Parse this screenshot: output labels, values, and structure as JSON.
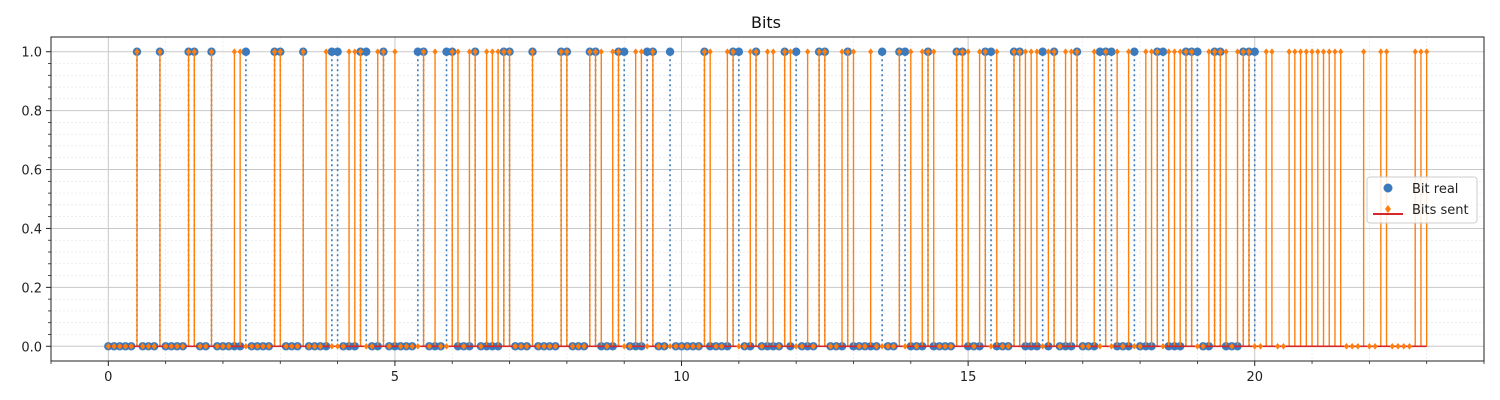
{
  "chart_data": {
    "type": "stem",
    "title": "Bits",
    "xlabel": "",
    "ylabel": "",
    "xlim": [
      -1.0,
      24.0
    ],
    "ylim": [
      -0.05,
      1.05
    ],
    "x_ticks": [
      0,
      5,
      10,
      15,
      20
    ],
    "x_tick_labels": [
      "0",
      "5",
      "10",
      "15",
      "20"
    ],
    "y_ticks": [
      0.0,
      0.2,
      0.4,
      0.6,
      0.8,
      1.0
    ],
    "y_tick_labels": [
      "0.0",
      "0.2",
      "0.4",
      "0.6",
      "0.8",
      "1.0"
    ],
    "grid": "major and minor",
    "legend_position": "right",
    "series": [
      {
        "name": "Bit real",
        "color": "#3a7abd",
        "marker": "circle",
        "line_style": "dotted",
        "step": 0.1,
        "x_start": 0.0,
        "ones_x": [
          0.5,
          0.9,
          1.4,
          1.5,
          1.8,
          2.4,
          2.9,
          3.0,
          3.4,
          3.9,
          4.0,
          4.4,
          4.5,
          4.8,
          5.4,
          5.5,
          5.9,
          6.0,
          6.4,
          6.9,
          7.0,
          7.4,
          7.9,
          8.0,
          8.4,
          8.5,
          8.9,
          9.0,
          9.4,
          9.5,
          9.8,
          10.4,
          10.9,
          11.0,
          11.3,
          11.8,
          12.0,
          12.4,
          12.5,
          12.9,
          13.5,
          13.8,
          13.9,
          14.3,
          14.8,
          14.9,
          15.3,
          15.4,
          15.8,
          15.9,
          16.3,
          16.5,
          16.9,
          17.3,
          17.4,
          17.5,
          17.9,
          18.3,
          18.4,
          18.8,
          18.9,
          19.0,
          19.3,
          19.4,
          19.8,
          19.9,
          20.0
        ],
        "zero_x_range": [
          0.0,
          20.0
        ]
      },
      {
        "name": "Bits sent",
        "color": "#ff7f0e",
        "marker": "diamond",
        "line_style": "solid",
        "baseline_color": "#d62728",
        "step": 0.1,
        "x_start": 0.0,
        "ones_x": [
          0.5,
          0.9,
          1.4,
          1.5,
          1.8,
          2.2,
          2.3,
          2.9,
          3.0,
          3.4,
          3.8,
          4.2,
          4.3,
          4.4,
          4.7,
          4.8,
          5.0,
          5.5,
          5.7,
          6.0,
          6.1,
          6.3,
          6.4,
          6.6,
          6.7,
          6.8,
          6.9,
          7.0,
          7.4,
          7.9,
          8.0,
          8.4,
          8.5,
          8.6,
          8.8,
          8.9,
          9.2,
          9.3,
          9.5,
          10.4,
          10.5,
          10.8,
          10.9,
          11.2,
          11.3,
          11.5,
          11.6,
          11.8,
          11.9,
          12.2,
          12.4,
          12.5,
          12.8,
          12.9,
          13.0,
          13.3,
          13.8,
          14.0,
          14.2,
          14.3,
          14.4,
          14.8,
          14.9,
          15.0,
          15.2,
          15.3,
          15.5,
          15.8,
          15.9,
          16.0,
          16.1,
          16.2,
          16.4,
          16.5,
          16.7,
          16.8,
          16.9,
          17.2,
          17.4,
          17.6,
          17.8,
          18.1,
          18.2,
          18.3,
          18.5,
          18.6,
          18.7,
          18.8,
          18.9,
          19.2,
          19.3,
          19.4,
          19.5,
          19.7,
          19.8,
          19.9,
          20.2,
          20.3,
          20.6,
          20.7,
          20.8,
          20.9,
          21.0,
          21.1,
          21.2,
          21.3,
          21.4,
          21.5,
          21.9,
          22.2,
          22.3,
          22.8,
          22.9,
          23.0
        ],
        "zero_x_range": [
          0.0,
          23.0
        ]
      }
    ]
  }
}
